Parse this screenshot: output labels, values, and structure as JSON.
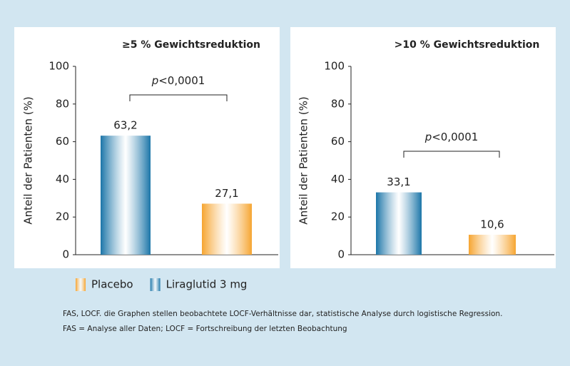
{
  "chart_data": [
    {
      "type": "bar",
      "title": "≥5 % Gewichtsreduktion",
      "ylabel": "Anteil der Patienten (%)",
      "categories": [
        null,
        null
      ],
      "series": [
        {
          "name": "Liraglutid 3 mg",
          "color": "#1b75a8",
          "values": [
            63.2,
            null
          ],
          "value_labels": [
            "63,2",
            null
          ]
        },
        {
          "name": "Placebo",
          "color": "#f6a531",
          "values": [
            null,
            27.1
          ],
          "value_labels": [
            null,
            "27,1"
          ]
        }
      ],
      "ylim": [
        0,
        100
      ],
      "yticks": [
        0,
        20,
        40,
        60,
        80,
        100
      ],
      "annotation": "p<0,0001"
    },
    {
      "type": "bar",
      "title": ">10 % Gewichtsreduktion",
      "ylabel": "Anteil der Patienten (%)",
      "categories": [
        null,
        null
      ],
      "series": [
        {
          "name": "Liraglutid 3 mg",
          "color": "#1b75a8",
          "values": [
            33.1,
            null
          ],
          "value_labels": [
            "33,1",
            null
          ]
        },
        {
          "name": "Placebo",
          "color": "#f6a531",
          "values": [
            null,
            10.6
          ],
          "value_labels": [
            null,
            "10,6"
          ]
        }
      ],
      "ylim": [
        0,
        100
      ],
      "yticks": [
        0,
        20,
        40,
        60,
        80,
        100
      ],
      "annotation": "p<0,0001"
    }
  ],
  "footnote": [
    "FAS, LOCF. die Graphen stellen beobachtete LOCF-Verhältnisse dar, statistische Analyse durch logistische Regression.",
    "FAS = Analyse aller Daten; LOCF = Fortschreibung der letzten Beobachtung"
  ]
}
